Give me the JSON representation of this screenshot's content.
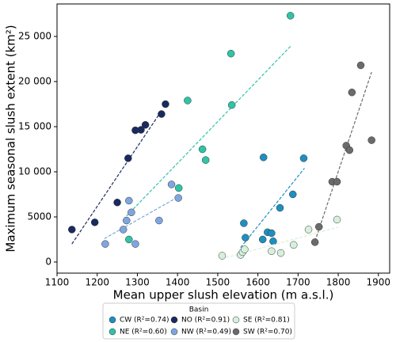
{
  "chart_data": {
    "type": "scatter",
    "xlabel": "Mean upper slush elevation (m a.s.l.)",
    "ylabel": "Maximum seasonal slush extent (km²)",
    "xlim": [
      1100,
      1928
    ],
    "ylim": [
      -1230,
      28600
    ],
    "xticks": [
      1100,
      1200,
      1300,
      1400,
      1500,
      1600,
      1700,
      1800,
      1900
    ],
    "yticks": [
      0,
      {
        "value": 5000,
        "label": "5000"
      },
      {
        "value": 10000,
        "label": "10 000"
      },
      {
        "value": 15000,
        "label": "15 000"
      },
      {
        "value": 20000,
        "label": "20 000"
      },
      {
        "value": 25000,
        "label": "25 000"
      }
    ],
    "legend_title": "Basin",
    "legend_position": "below",
    "series": [
      {
        "name": "CW (R²=0.74)",
        "color": "#1f8fbf",
        "x": [
          1714,
          1687,
          1655,
          1565,
          1569,
          1612,
          1624,
          1634,
          1638,
          1614
        ],
        "values": [
          11500,
          7500,
          6000,
          4300,
          2700,
          2500,
          3300,
          3200,
          2300,
          11600
        ],
        "fit_x": [
          1557,
          1716
        ],
        "fit_y": [
          1600,
          10400
        ]
      },
      {
        "name": "NE (R²=0.60)",
        "color": "#2ec4a6",
        "x": [
          1681,
          1533,
          1425,
          1535,
          1462,
          1470,
          1403,
          1279
        ],
        "values": [
          27300,
          23100,
          17900,
          17400,
          12500,
          11300,
          8200,
          2500
        ],
        "fit_x": [
          1273,
          1681
        ],
        "fit_y": [
          5100,
          23900
        ]
      },
      {
        "name": "NO (R²=0.91)",
        "color": "#1a2a5e",
        "x": [
          1137,
          1194,
          1250,
          1277,
          1295,
          1309,
          1320,
          1360,
          1370
        ],
        "values": [
          3600,
          4400,
          6600,
          11500,
          14600,
          14650,
          15200,
          16400,
          17500
        ],
        "fit_x": [
          1137,
          1360
        ],
        "fit_y": [
          2000,
          16750
        ]
      },
      {
        "name": "NW (R²=0.49)",
        "color": "#7ea6e0",
        "x": [
          1220,
          1265,
          1273,
          1285,
          1279,
          1295,
          1354,
          1385,
          1402
        ],
        "values": [
          2000,
          3600,
          4600,
          5500,
          6800,
          2000,
          4600,
          8600,
          7100
        ],
        "fit_x": [
          1218,
          1401
        ],
        "fit_y": [
          2600,
          7200
        ]
      },
      {
        "name": "SE (R²=0.81)",
        "color": "#d6f0dc",
        "x": [
          1511,
          1557,
          1562,
          1567,
          1634,
          1657,
          1689,
          1726,
          1797
        ],
        "values": [
          700,
          800,
          1100,
          1400,
          1200,
          1000,
          1900,
          3600,
          4700
        ],
        "fit_x": [
          1509,
          1799
        ],
        "fit_y": [
          350,
          3850
        ]
      },
      {
        "name": "SW (R²=0.70)",
        "color": "#6b6b6b",
        "x": [
          1856,
          1834,
          1820,
          1828,
          1785,
          1797,
          1752,
          1742,
          1883
        ],
        "values": [
          21800,
          18800,
          12900,
          12400,
          8900,
          8900,
          3900,
          2200,
          13500
        ],
        "fit_x": [
          1742,
          1883
        ],
        "fit_y": [
          2300,
          21050
        ]
      }
    ]
  }
}
